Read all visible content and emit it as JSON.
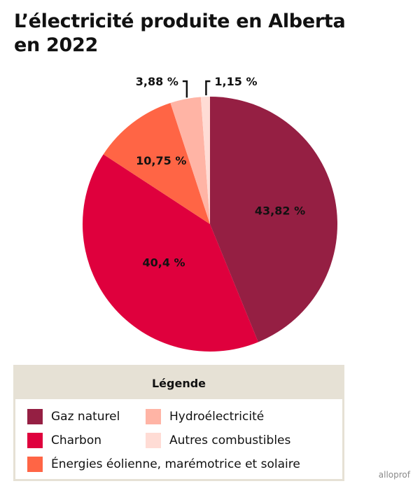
{
  "title_line1": "L’électricité produite en Alberta",
  "title_line2": "en 2022",
  "legend": {
    "heading": "Légende",
    "items": [
      {
        "label": "Gaz naturel",
        "color": "#951f43"
      },
      {
        "label": "Hydroélectricité",
        "color": "#ffb4a5"
      },
      {
        "label": "Charbon",
        "color": "#df003d"
      },
      {
        "label": "Autres combustibles",
        "color": "#ffdcd5"
      },
      {
        "label": "Énergies éolienne, marémotrice et solaire",
        "color": "#ff6545"
      }
    ]
  },
  "brand": "alloprof",
  "chart_data": {
    "type": "pie",
    "slices": [
      {
        "name": "Gaz naturel",
        "value": 43.82,
        "label": "43,82 %",
        "color": "#951f43"
      },
      {
        "name": "Charbon",
        "value": 40.4,
        "label": "40,4 %",
        "color": "#df003d"
      },
      {
        "name": "Énergies éolienne, marémotrice et solaire",
        "value": 10.75,
        "label": "10,75 %",
        "color": "#ff6545"
      },
      {
        "name": "Hydroélectricité",
        "value": 3.88,
        "label": "3,88 %",
        "color": "#ffb4a5"
      },
      {
        "name": "Autres combustibles",
        "value": 1.15,
        "label": "1,15 %",
        "color": "#ffdcd5"
      }
    ],
    "start": "12 o'clock",
    "direction": "clockwise"
  }
}
